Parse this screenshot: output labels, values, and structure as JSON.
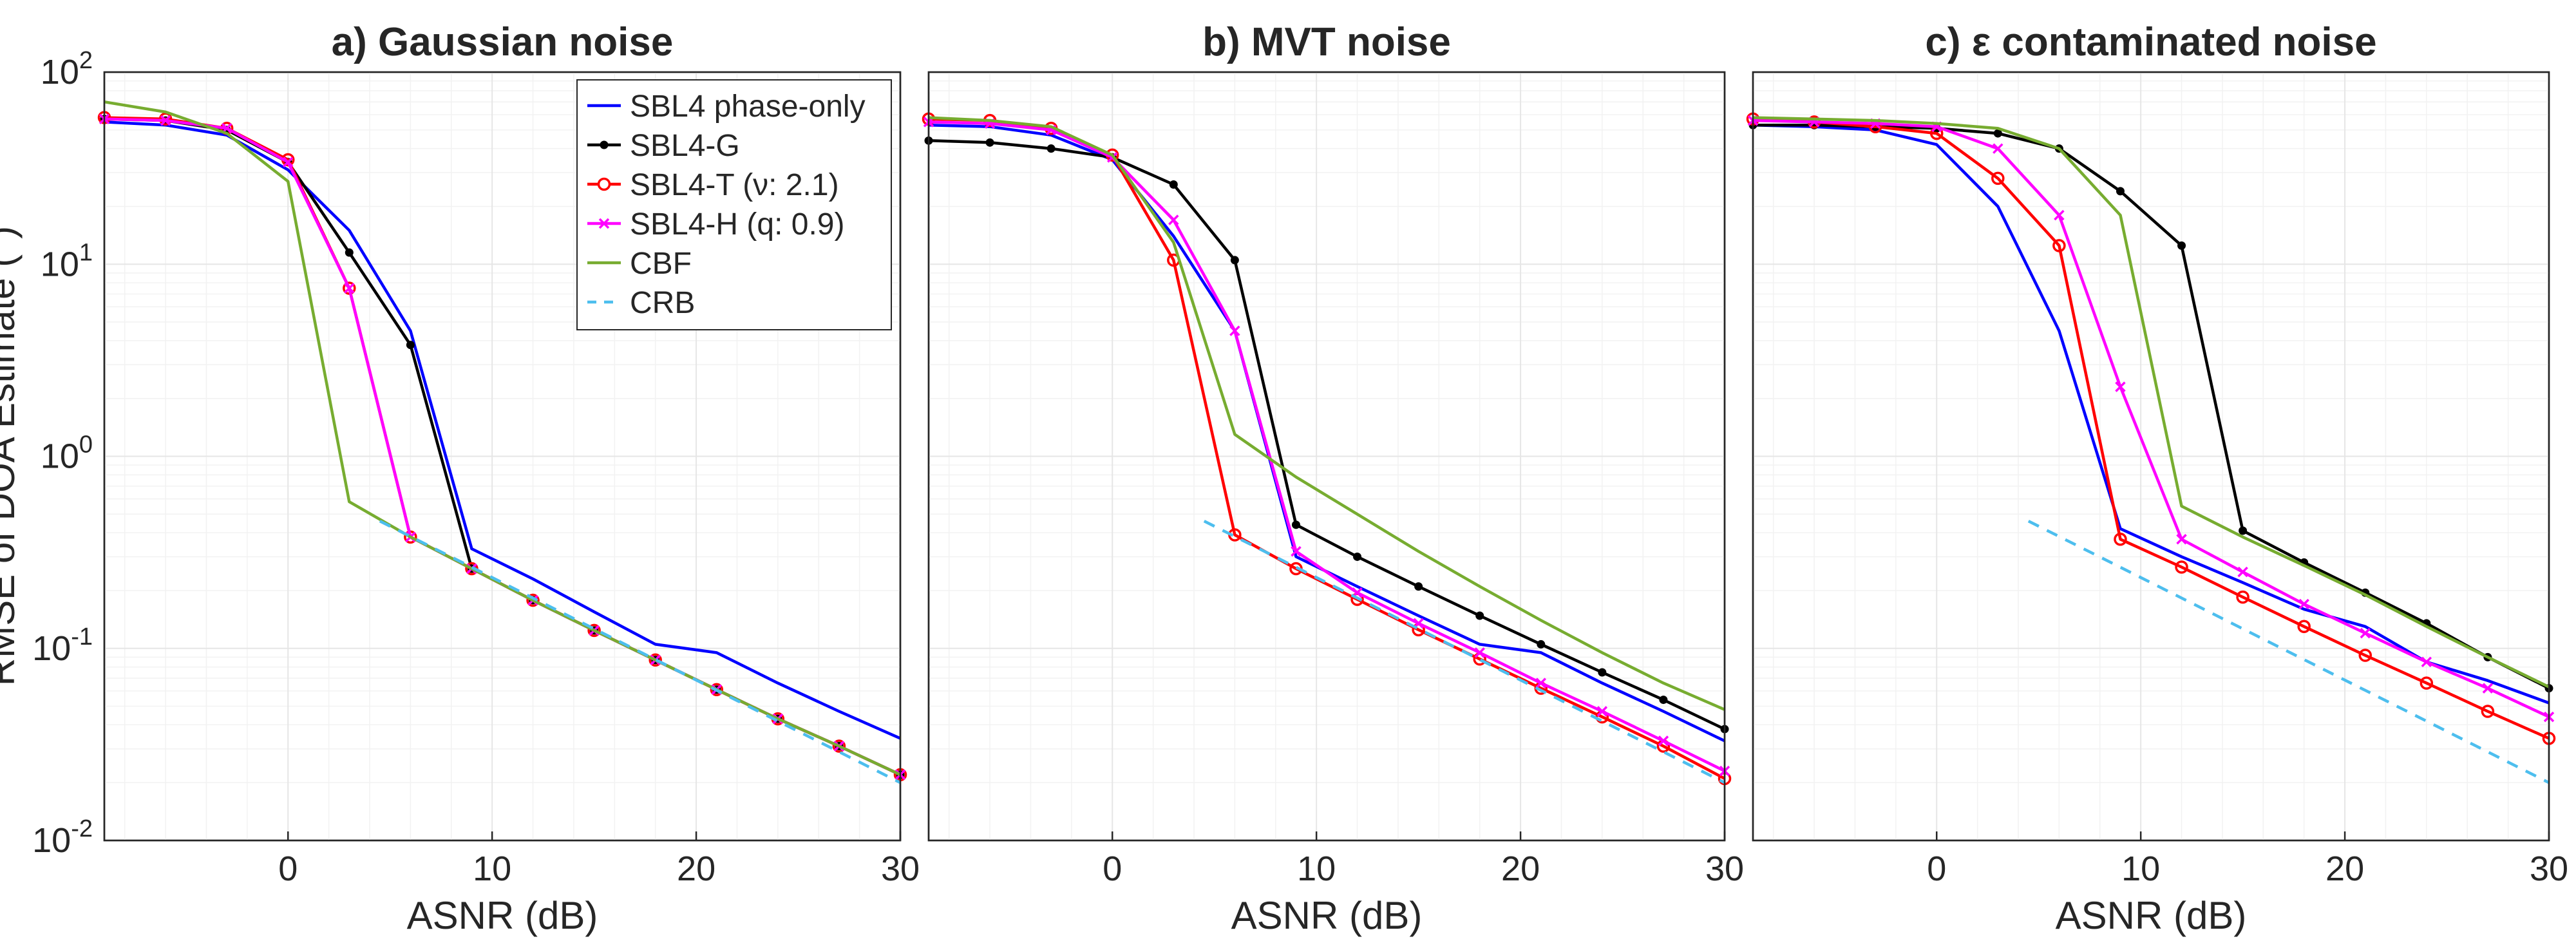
{
  "figure": {
    "ylabel": "RMSE of DOA Estimate (°)"
  },
  "legend": {
    "position": "top-right of panel a",
    "entries": [
      "SBL4 phase-only",
      "SBL4-G",
      "SBL4-T (ν: 2.1)",
      "SBL4-H (q: 0.9)",
      "CBF",
      "CRB"
    ]
  },
  "styles": {
    "SBL4 phase-only": {
      "color": "#0000ff",
      "marker": "none",
      "dash": "solid"
    },
    "SBL4-G": {
      "color": "#000000",
      "marker": "dot",
      "dash": "solid"
    },
    "SBL4-T (ν: 2.1)": {
      "color": "#ff0000",
      "marker": "circle",
      "dash": "solid"
    },
    "SBL4-H (q: 0.9)": {
      "color": "#ff00ff",
      "marker": "x",
      "dash": "solid"
    },
    "CBF": {
      "color": "#77ac30",
      "marker": "none",
      "dash": "solid"
    },
    "CRB": {
      "color": "#4dbeee",
      "marker": "none",
      "dash": "dashed"
    }
  },
  "chart_data": [
    {
      "type": "line",
      "title": "a) Gaussian noise",
      "xlabel": "ASNR (dB)",
      "ylabel": "RMSE of DOA Estimate (°)",
      "xlim": [
        -9,
        30
      ],
      "ylim": [
        0.01,
        100
      ],
      "yscale": "log",
      "xticks": [
        0,
        10,
        20,
        30
      ],
      "yticks": [
        "10^-2",
        "10^-1",
        "10^0",
        "10^1",
        "10^2"
      ],
      "grid": true,
      "series": [
        {
          "name": "SBL4 phase-only",
          "x": [
            -9,
            -6,
            -3,
            0,
            3,
            6,
            9,
            12,
            15,
            18,
            21,
            24,
            27,
            30
          ],
          "y": [
            55,
            53,
            47,
            31,
            15,
            4.5,
            0.33,
            0.23,
            0.155,
            0.105,
            0.095,
            0.066,
            0.047,
            0.034
          ]
        },
        {
          "name": "SBL4-G",
          "x": [
            -9,
            -6,
            -3,
            0,
            3,
            6,
            9,
            12,
            15,
            18,
            21,
            24,
            27,
            30
          ],
          "y": [
            57,
            56,
            50,
            34,
            11.5,
            3.8,
            0.26,
            0.178,
            0.124,
            0.087,
            0.061,
            0.043,
            0.031,
            0.022
          ]
        },
        {
          "name": "SBL4-T (ν: 2.1)",
          "x": [
            -9,
            -6,
            -3,
            0,
            3,
            6,
            9,
            12,
            15,
            18,
            21,
            24,
            27,
            30
          ],
          "y": [
            58,
            57,
            51,
            35,
            7.5,
            0.38,
            0.26,
            0.178,
            0.124,
            0.087,
            0.061,
            0.043,
            0.031,
            0.022
          ]
        },
        {
          "name": "SBL4-H (q: 0.9)",
          "x": [
            -9,
            -6,
            -3,
            0,
            3,
            6,
            9,
            12,
            15,
            18,
            21,
            24,
            27,
            30
          ],
          "y": [
            57,
            56,
            51,
            34,
            7.5,
            0.38,
            0.26,
            0.178,
            0.124,
            0.087,
            0.061,
            0.043,
            0.031,
            0.022
          ]
        },
        {
          "name": "CBF",
          "x": [
            -9,
            -6,
            -3,
            0,
            3,
            6,
            9,
            12,
            15,
            18,
            21,
            24,
            27,
            30
          ],
          "y": [
            70,
            62,
            48,
            27,
            0.58,
            0.38,
            0.26,
            0.178,
            0.124,
            0.087,
            0.061,
            0.043,
            0.031,
            0.022
          ]
        },
        {
          "name": "CRB",
          "x": [
            4.5,
            30
          ],
          "y": [
            0.46,
            0.02
          ]
        }
      ]
    },
    {
      "type": "line",
      "title": "b) MVT noise",
      "xlabel": "ASNR (dB)",
      "xlim": [
        -9,
        30
      ],
      "ylim": [
        0.01,
        100
      ],
      "yscale": "log",
      "xticks": [
        0,
        10,
        20,
        30
      ],
      "grid": true,
      "series": [
        {
          "name": "SBL4 phase-only",
          "x": [
            -9,
            -6,
            -3,
            0,
            3,
            6,
            9,
            12,
            15,
            18,
            21,
            24,
            27,
            30
          ],
          "y": [
            53,
            52,
            47,
            35,
            14,
            4.5,
            0.3,
            0.21,
            0.148,
            0.105,
            0.095,
            0.066,
            0.047,
            0.033
          ]
        },
        {
          "name": "SBL4-G",
          "x": [
            -9,
            -6,
            -3,
            0,
            3,
            6,
            9,
            12,
            15,
            18,
            21,
            24,
            27,
            30
          ],
          "y": [
            44,
            43,
            40,
            36,
            26,
            10.5,
            0.44,
            0.3,
            0.21,
            0.148,
            0.105,
            0.075,
            0.054,
            0.038
          ]
        },
        {
          "name": "SBL4-T (ν: 2.1)",
          "x": [
            -9,
            -6,
            -3,
            0,
            3,
            6,
            9,
            12,
            15,
            18,
            21,
            24,
            27,
            30
          ],
          "y": [
            57,
            56,
            51,
            37,
            10.5,
            0.39,
            0.26,
            0.18,
            0.125,
            0.088,
            0.062,
            0.044,
            0.031,
            0.021
          ]
        },
        {
          "name": "SBL4-H (q: 0.9)",
          "x": [
            -9,
            -6,
            -3,
            0,
            3,
            6,
            9,
            12,
            15,
            18,
            21,
            24,
            27,
            30
          ],
          "y": [
            55,
            54,
            50,
            36,
            17,
            4.5,
            0.32,
            0.195,
            0.135,
            0.095,
            0.066,
            0.047,
            0.033,
            0.023
          ]
        },
        {
          "name": "CBF",
          "x": [
            -9,
            -6,
            -3,
            0,
            3,
            6,
            9,
            12,
            15,
            18,
            21,
            24,
            27,
            30
          ],
          "y": [
            58,
            56,
            52,
            37,
            13,
            1.3,
            0.78,
            0.5,
            0.32,
            0.21,
            0.14,
            0.095,
            0.066,
            0.048
          ]
        },
        {
          "name": "CRB",
          "x": [
            4.5,
            30
          ],
          "y": [
            0.46,
            0.02
          ]
        }
      ]
    },
    {
      "type": "line",
      "title": "c) ε contaminated noise",
      "xlabel": "ASNR (dB)",
      "xlim": [
        -9,
        30
      ],
      "ylim": [
        0.01,
        100
      ],
      "yscale": "log",
      "xticks": [
        0,
        10,
        20,
        30
      ],
      "grid": true,
      "series": [
        {
          "name": "SBL4 phase-only",
          "x": [
            -9,
            -6,
            -3,
            0,
            3,
            6,
            9,
            12,
            15,
            18,
            21,
            24,
            27,
            30
          ],
          "y": [
            53,
            52,
            50,
            42,
            20,
            4.5,
            0.42,
            0.3,
            0.22,
            0.16,
            0.13,
            0.085,
            0.068,
            0.052
          ]
        },
        {
          "name": "SBL4-G",
          "x": [
            -9,
            -6,
            -3,
            0,
            3,
            6,
            9,
            12,
            15,
            18,
            21,
            24,
            27,
            30
          ],
          "y": [
            53,
            53,
            52,
            51,
            48,
            40,
            24,
            12.5,
            0.41,
            0.28,
            0.195,
            0.135,
            0.09,
            0.062
          ]
        },
        {
          "name": "SBL4-T (ν: 2.1)",
          "x": [
            -9,
            -6,
            -3,
            0,
            3,
            6,
            9,
            12,
            15,
            18,
            21,
            24,
            27,
            30
          ],
          "y": [
            57,
            55,
            52,
            48,
            28,
            12.5,
            0.37,
            0.265,
            0.185,
            0.13,
            0.092,
            0.066,
            0.047,
            0.034
          ]
        },
        {
          "name": "SBL4-H (q: 0.9)",
          "x": [
            -9,
            -6,
            -3,
            0,
            3,
            6,
            9,
            12,
            15,
            18,
            21,
            24,
            27,
            30
          ],
          "y": [
            56,
            55,
            54,
            52,
            40,
            18,
            2.3,
            0.37,
            0.25,
            0.17,
            0.12,
            0.085,
            0.062,
            0.044
          ]
        },
        {
          "name": "CBF",
          "x": [
            -9,
            -6,
            -3,
            0,
            3,
            6,
            9,
            12,
            15,
            18,
            21,
            24,
            27,
            30
          ],
          "y": [
            58,
            57,
            56,
            54,
            51,
            40,
            18,
            0.55,
            0.38,
            0.27,
            0.19,
            0.13,
            0.09,
            0.063
          ]
        },
        {
          "name": "CRB",
          "x": [
            4.5,
            30
          ],
          "y": [
            0.46,
            0.02
          ]
        }
      ]
    }
  ]
}
